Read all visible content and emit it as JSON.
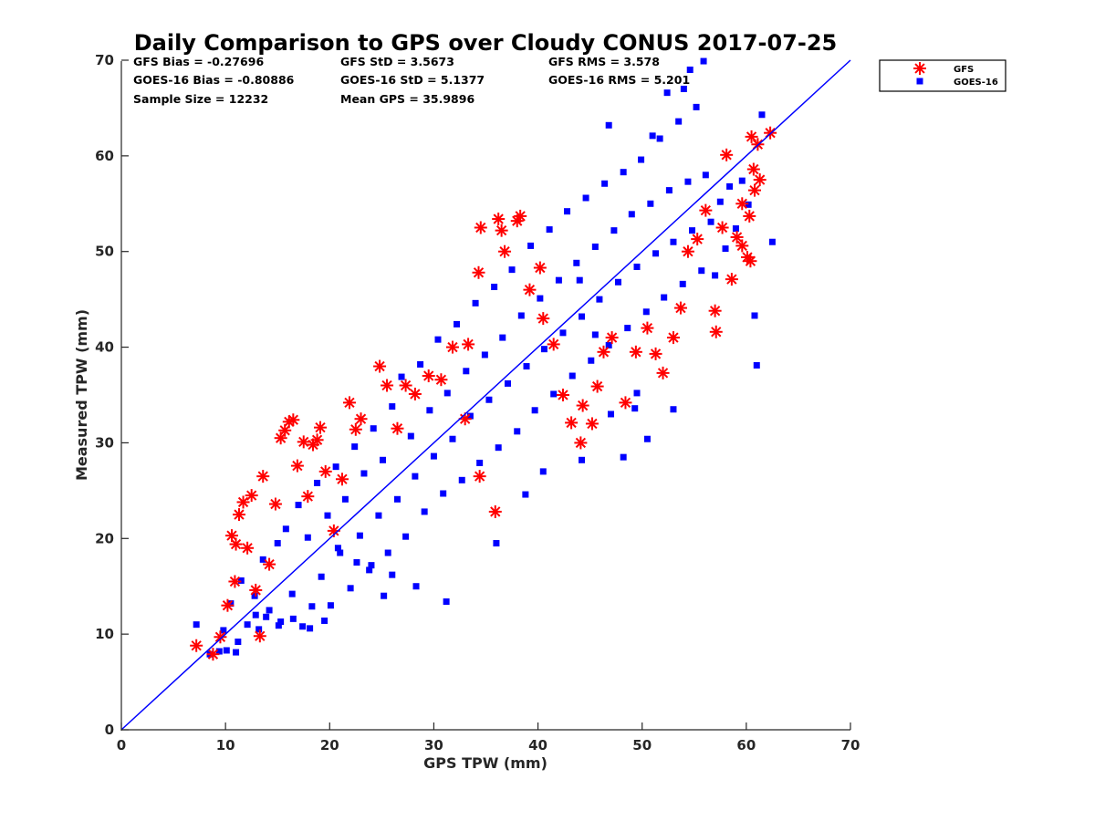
{
  "chart_data": {
    "type": "scatter",
    "title": "Daily Comparison to GPS over Cloudy CONUS 2017-07-25",
    "xlabel": "GPS TPW (mm)",
    "ylabel": "Measured TPW (mm)",
    "xlim": [
      0,
      70
    ],
    "ylim": [
      0,
      70
    ],
    "xticks": [
      "0",
      "10",
      "20",
      "30",
      "40",
      "50",
      "60",
      "70"
    ],
    "yticks": [
      "0",
      "10",
      "20",
      "30",
      "40",
      "50",
      "60",
      "70"
    ],
    "grid": false,
    "legend_position": "outside top-right",
    "reference_line": {
      "x": [
        0,
        70
      ],
      "y": [
        0,
        70
      ],
      "color": "#0000ff"
    },
    "stats": [
      "GFS Bias = -0.27696",
      "GFS StD = 3.5673",
      "GFS RMS = 3.578",
      "GOES-16 Bias = -0.80886",
      "GOES-16 StD = 5.1377",
      "GOES-16 RMS = 5.201",
      "Sample Size = 12232",
      "Mean GPS = 35.9896"
    ],
    "series": [
      {
        "name": "GOES-16",
        "marker": "square",
        "color": "#0000ff",
        "points": [
          [
            7.2,
            11.0
          ],
          [
            8.5,
            7.9
          ],
          [
            9.4,
            8.2
          ],
          [
            9.8,
            10.4
          ],
          [
            10.5,
            13.2
          ],
          [
            11.0,
            8.1
          ],
          [
            11.5,
            15.6
          ],
          [
            12.1,
            11.0
          ],
          [
            12.8,
            14.0
          ],
          [
            13.2,
            10.5
          ],
          [
            13.6,
            17.8
          ],
          [
            14.2,
            12.5
          ],
          [
            15.0,
            19.5
          ],
          [
            15.3,
            11.3
          ],
          [
            15.8,
            21.0
          ],
          [
            16.4,
            14.2
          ],
          [
            17.0,
            23.5
          ],
          [
            17.4,
            10.8
          ],
          [
            17.9,
            20.1
          ],
          [
            18.3,
            12.9
          ],
          [
            18.8,
            25.8
          ],
          [
            19.2,
            16.0
          ],
          [
            19.8,
            22.4
          ],
          [
            20.1,
            13.0
          ],
          [
            20.6,
            27.5
          ],
          [
            21.0,
            18.5
          ],
          [
            21.5,
            24.1
          ],
          [
            22.0,
            14.8
          ],
          [
            22.4,
            29.6
          ],
          [
            22.9,
            20.3
          ],
          [
            23.3,
            26.8
          ],
          [
            23.8,
            16.7
          ],
          [
            24.2,
            31.5
          ],
          [
            24.7,
            22.4
          ],
          [
            25.1,
            28.2
          ],
          [
            25.6,
            18.5
          ],
          [
            26.0,
            33.8
          ],
          [
            26.5,
            24.1
          ],
          [
            26.9,
            36.9
          ],
          [
            27.3,
            20.2
          ],
          [
            27.8,
            30.7
          ],
          [
            28.2,
            26.5
          ],
          [
            28.7,
            38.2
          ],
          [
            29.1,
            22.8
          ],
          [
            29.6,
            33.4
          ],
          [
            30.0,
            28.6
          ],
          [
            30.4,
            40.8
          ],
          [
            30.9,
            24.7
          ],
          [
            31.3,
            35.2
          ],
          [
            31.8,
            30.4
          ],
          [
            32.2,
            42.4
          ],
          [
            32.7,
            26.1
          ],
          [
            33.1,
            37.5
          ],
          [
            33.5,
            32.8
          ],
          [
            34.0,
            44.6
          ],
          [
            34.4,
            27.9
          ],
          [
            34.9,
            39.2
          ],
          [
            35.3,
            34.5
          ],
          [
            35.8,
            46.3
          ],
          [
            36.2,
            29.5
          ],
          [
            36.6,
            41.0
          ],
          [
            37.1,
            36.2
          ],
          [
            37.5,
            48.1
          ],
          [
            38.0,
            31.2
          ],
          [
            38.4,
            43.3
          ],
          [
            38.9,
            38.0
          ],
          [
            39.3,
            50.6
          ],
          [
            39.7,
            33.4
          ],
          [
            40.2,
            45.1
          ],
          [
            40.6,
            39.8
          ],
          [
            41.1,
            52.3
          ],
          [
            41.5,
            35.1
          ],
          [
            42.0,
            47.0
          ],
          [
            42.4,
            41.5
          ],
          [
            42.8,
            54.2
          ],
          [
            43.3,
            37.0
          ],
          [
            43.7,
            48.8
          ],
          [
            44.2,
            43.2
          ],
          [
            44.6,
            55.6
          ],
          [
            45.1,
            38.6
          ],
          [
            45.5,
            50.5
          ],
          [
            45.9,
            45.0
          ],
          [
            46.4,
            57.1
          ],
          [
            46.8,
            40.2
          ],
          [
            47.3,
            52.2
          ],
          [
            47.7,
            46.8
          ],
          [
            48.2,
            58.3
          ],
          [
            48.6,
            42.0
          ],
          [
            49.0,
            53.9
          ],
          [
            49.5,
            48.4
          ],
          [
            49.9,
            59.6
          ],
          [
            50.4,
            43.7
          ],
          [
            50.8,
            55.0
          ],
          [
            51.3,
            49.8
          ],
          [
            51.7,
            61.8
          ],
          [
            52.1,
            45.2
          ],
          [
            52.6,
            56.4
          ],
          [
            53.0,
            51.0
          ],
          [
            53.5,
            63.6
          ],
          [
            53.9,
            46.6
          ],
          [
            54.4,
            57.3
          ],
          [
            54.8,
            52.2
          ],
          [
            55.2,
            65.1
          ],
          [
            55.7,
            48.0
          ],
          [
            56.1,
            58.0
          ],
          [
            56.6,
            53.1
          ],
          [
            57.0,
            47.5
          ],
          [
            57.5,
            55.2
          ],
          [
            58.0,
            50.3
          ],
          [
            58.4,
            56.8
          ],
          [
            59.0,
            52.4
          ],
          [
            59.6,
            57.4
          ],
          [
            60.2,
            54.9
          ],
          [
            60.8,
            43.3
          ],
          [
            61.0,
            38.1
          ],
          [
            61.5,
            64.3
          ],
          [
            62.5,
            51.0
          ],
          [
            55.9,
            69.9
          ],
          [
            54.6,
            69.0
          ],
          [
            54.0,
            67.0
          ],
          [
            52.4,
            66.6
          ],
          [
            51.0,
            62.1
          ],
          [
            46.8,
            63.2
          ],
          [
            44.0,
            47.0
          ],
          [
            45.5,
            41.3
          ],
          [
            47.0,
            33.0
          ],
          [
            49.3,
            33.6
          ],
          [
            49.5,
            35.2
          ],
          [
            50.5,
            30.4
          ],
          [
            53.0,
            33.5
          ],
          [
            48.2,
            28.5
          ],
          [
            44.2,
            28.2
          ],
          [
            40.5,
            27.0
          ],
          [
            38.8,
            24.6
          ],
          [
            36.0,
            19.5
          ],
          [
            31.2,
            13.4
          ],
          [
            28.3,
            15.0
          ],
          [
            26.0,
            16.2
          ],
          [
            25.2,
            14.0
          ],
          [
            24.0,
            17.2
          ],
          [
            22.6,
            17.5
          ],
          [
            20.8,
            19.0
          ],
          [
            19.5,
            11.4
          ],
          [
            18.1,
            10.6
          ],
          [
            16.5,
            11.6
          ],
          [
            15.1,
            10.9
          ],
          [
            13.9,
            11.8
          ],
          [
            12.9,
            12.0
          ],
          [
            11.2,
            9.2
          ],
          [
            10.1,
            8.3
          ]
        ]
      },
      {
        "name": "GFS",
        "marker": "asterisk",
        "color": "#ff0000",
        "points": [
          [
            7.2,
            8.8
          ],
          [
            8.8,
            7.9
          ],
          [
            9.5,
            9.7
          ],
          [
            10.2,
            13.0
          ],
          [
            10.6,
            20.3
          ],
          [
            10.9,
            15.5
          ],
          [
            11.0,
            19.4
          ],
          [
            11.3,
            22.5
          ],
          [
            11.7,
            23.8
          ],
          [
            12.1,
            19.0
          ],
          [
            12.5,
            24.5
          ],
          [
            12.9,
            14.6
          ],
          [
            13.3,
            9.8
          ],
          [
            13.6,
            26.5
          ],
          [
            14.2,
            17.3
          ],
          [
            14.8,
            23.6
          ],
          [
            15.3,
            30.5
          ],
          [
            15.7,
            31.3
          ],
          [
            16.1,
            32.2
          ],
          [
            16.5,
            32.4
          ],
          [
            16.9,
            27.6
          ],
          [
            17.5,
            30.1
          ],
          [
            17.9,
            24.4
          ],
          [
            18.4,
            29.8
          ],
          [
            18.8,
            30.3
          ],
          [
            19.1,
            31.6
          ],
          [
            19.6,
            27.0
          ],
          [
            20.4,
            20.8
          ],
          [
            21.2,
            26.2
          ],
          [
            21.9,
            34.2
          ],
          [
            22.5,
            31.4
          ],
          [
            23.0,
            32.5
          ],
          [
            24.8,
            38.0
          ],
          [
            25.5,
            36.0
          ],
          [
            26.5,
            31.5
          ],
          [
            27.3,
            36.0
          ],
          [
            28.2,
            35.1
          ],
          [
            29.5,
            37.0
          ],
          [
            30.7,
            36.6
          ],
          [
            31.8,
            40.0
          ],
          [
            33.0,
            32.5
          ],
          [
            34.3,
            47.8
          ],
          [
            34.5,
            52.5
          ],
          [
            36.2,
            53.4
          ],
          [
            36.5,
            52.2
          ],
          [
            36.8,
            50.0
          ],
          [
            38.0,
            53.2
          ],
          [
            38.3,
            53.7
          ],
          [
            39.2,
            46.0
          ],
          [
            40.2,
            48.3
          ],
          [
            40.5,
            43.0
          ],
          [
            41.5,
            40.3
          ],
          [
            42.4,
            35.0
          ],
          [
            43.2,
            32.1
          ],
          [
            44.1,
            30.0
          ],
          [
            44.3,
            33.9
          ],
          [
            45.2,
            32.0
          ],
          [
            45.7,
            35.9
          ],
          [
            46.3,
            39.5
          ],
          [
            47.1,
            41.0
          ],
          [
            48.4,
            34.2
          ],
          [
            49.4,
            39.5
          ],
          [
            50.5,
            42.0
          ],
          [
            51.3,
            39.3
          ],
          [
            52.0,
            37.3
          ],
          [
            53.0,
            41.0
          ],
          [
            53.7,
            44.1
          ],
          [
            54.4,
            50.0
          ],
          [
            55.3,
            51.3
          ],
          [
            56.1,
            54.3
          ],
          [
            57.0,
            43.8
          ],
          [
            57.1,
            41.6
          ],
          [
            57.7,
            52.5
          ],
          [
            58.1,
            60.1
          ],
          [
            58.6,
            47.1
          ],
          [
            59.1,
            51.5
          ],
          [
            59.6,
            55.0
          ],
          [
            60.1,
            49.4
          ],
          [
            60.3,
            53.7
          ],
          [
            60.5,
            62.0
          ],
          [
            60.7,
            58.6
          ],
          [
            60.8,
            56.4
          ],
          [
            61.1,
            61.2
          ],
          [
            61.3,
            57.5
          ],
          [
            62.3,
            62.4
          ],
          [
            60.4,
            49.0
          ],
          [
            59.6,
            50.6
          ],
          [
            35.9,
            22.8
          ],
          [
            34.4,
            26.5
          ],
          [
            33.3,
            40.3
          ]
        ]
      }
    ]
  }
}
